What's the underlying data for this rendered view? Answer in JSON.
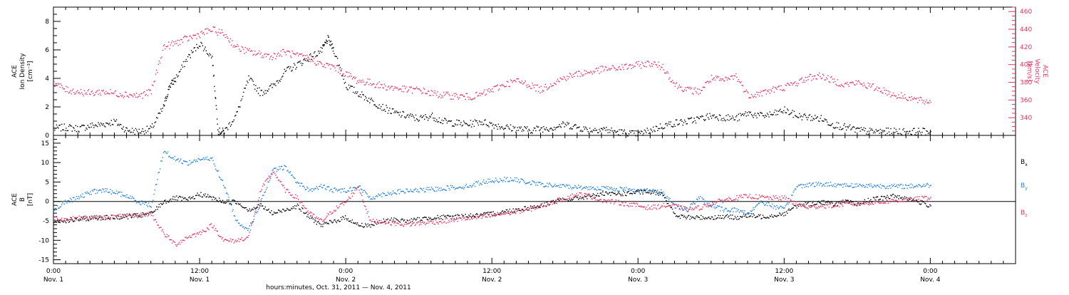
{
  "colors": {
    "density": "#000000",
    "velocity": "#e8305f",
    "bx": "#000000",
    "by": "#1f7fe0",
    "bz": "#e8305f"
  },
  "top_panel": {
    "left_axis_lines": [
      "ACE",
      "Ion Density",
      "[cm⁻³]"
    ],
    "right_axis_lines": [
      "ACE",
      "Velocity",
      "[km/s]"
    ]
  },
  "bottom_panel": {
    "left_axis_lines": [
      "ACE",
      "B",
      "[nT]"
    ],
    "legend": [
      {
        "label": "B",
        "sub": "x"
      },
      {
        "label": "B",
        "sub": "y"
      },
      {
        "label": "B",
        "sub": "z"
      }
    ]
  },
  "x_axis": {
    "ticks": [
      {
        "hours": 0,
        "time": "0:00",
        "date": "Nov. 1"
      },
      {
        "hours": 12,
        "time": "12:00",
        "date": "Nov. 1"
      },
      {
        "hours": 24,
        "time": "0:00",
        "date": "Nov. 2"
      },
      {
        "hours": 36,
        "time": "12:00",
        "date": "Nov. 2"
      },
      {
        "hours": 48,
        "time": "0:00",
        "date": "Nov. 3"
      },
      {
        "hours": 60,
        "time": "12:00",
        "date": "Nov. 3"
      },
      {
        "hours": 72,
        "time": "0:00",
        "date": "Nov. 4"
      }
    ],
    "caption": "hours:minutes, Oct. 31, 2011 — Nov.  4, 2011"
  },
  "chart_data": [
    {
      "type": "scatter",
      "panel": "top",
      "ylabel": "ACE Ion Density [cm⁻³]",
      "y2label": "ACE Velocity [km/s]",
      "x_unit": "hours after 0:00 Nov. 1",
      "xlim": [
        0,
        79
      ],
      "ylim": [
        0,
        9
      ],
      "y_ticks": [
        0,
        2,
        4,
        6,
        8
      ],
      "y2lim": [
        320,
        465
      ],
      "y2_ticks": [
        340,
        360,
        380,
        400,
        420,
        440,
        460
      ],
      "series": [
        {
          "color": "#000000",
          "axis": "left",
          "x": [
            0,
            1,
            2,
            3,
            4,
            5,
            6,
            7,
            8,
            9,
            9.5,
            10,
            11,
            12,
            13,
            13.5,
            14,
            15,
            16,
            17,
            18,
            19,
            20,
            21,
            22,
            22.5,
            23,
            24,
            25,
            26,
            27,
            28,
            29,
            30,
            31,
            32,
            33,
            34,
            35,
            36,
            37,
            38,
            39,
            40,
            41,
            42,
            43,
            44,
            45,
            46,
            47,
            48,
            49,
            50,
            51,
            52,
            53,
            54,
            55,
            56,
            57,
            58,
            59,
            60,
            61,
            62,
            63,
            64,
            65,
            66,
            67,
            68,
            69,
            70,
            71,
            72
          ],
          "y": [
            0.5,
            0.6,
            0.5,
            0.7,
            0.8,
            1.0,
            0.4,
            0.3,
            0.5,
            2.0,
            3.5,
            4.0,
            5.5,
            6.5,
            5.5,
            0.3,
            0.3,
            1.5,
            4.0,
            3.0,
            3.5,
            4.5,
            5.0,
            5.5,
            6.0,
            6.8,
            6.0,
            3.5,
            3.0,
            2.5,
            2.0,
            1.6,
            1.4,
            1.2,
            1.4,
            1.0,
            0.9,
            0.8,
            1.0,
            0.8,
            0.6,
            0.5,
            0.4,
            0.5,
            0.6,
            0.8,
            0.6,
            0.4,
            0.5,
            0.3,
            0.2,
            0.1,
            0.4,
            0.7,
            0.9,
            1.0,
            1.2,
            1.4,
            1.3,
            1.2,
            1.6,
            1.4,
            1.5,
            1.8,
            1.4,
            1.3,
            1.2,
            0.8,
            0.6,
            0.4,
            0.3,
            0.3,
            0.3,
            0.3,
            0.3,
            0.3
          ]
        },
        {
          "color": "#e8305f",
          "axis": "right",
          "x": [
            0,
            1,
            2,
            3,
            4,
            5,
            6,
            7,
            8,
            9,
            10,
            11,
            12,
            13,
            14,
            15,
            16,
            17,
            18,
            19,
            20,
            21,
            22,
            23,
            24,
            25,
            26,
            27,
            28,
            29,
            30,
            31,
            32,
            33,
            34,
            35,
            36,
            37,
            38,
            39,
            40,
            41,
            42,
            43,
            44,
            45,
            46,
            47,
            48,
            49,
            50,
            51,
            52,
            53,
            54,
            55,
            56,
            57,
            58,
            59,
            60,
            61,
            62,
            63,
            64,
            65,
            66,
            67,
            68,
            69,
            70,
            71,
            72
          ],
          "y": [
            380,
            372,
            370,
            368,
            370,
            368,
            367,
            365,
            370,
            420,
            425,
            430,
            435,
            440,
            435,
            420,
            415,
            412,
            410,
            415,
            410,
            408,
            400,
            398,
            390,
            382,
            380,
            376,
            374,
            372,
            372,
            368,
            366,
            365,
            364,
            366,
            372,
            378,
            382,
            378,
            372,
            380,
            386,
            390,
            392,
            395,
            396,
            398,
            400,
            402,
            398,
            378,
            372,
            370,
            385,
            382,
            388,
            366,
            368,
            372,
            375,
            380,
            386,
            388,
            382,
            378,
            380,
            376,
            372,
            366,
            364,
            360,
            358
          ]
        }
      ]
    },
    {
      "type": "scatter",
      "panel": "bottom",
      "ylabel": "ACE B [nT]",
      "x_unit": "hours after 0:00 Nov. 1",
      "xlim": [
        0,
        79
      ],
      "ylim": [
        -16,
        17
      ],
      "y_ticks": [
        -15,
        -10,
        -5,
        0,
        5,
        10,
        15
      ],
      "series": [
        {
          "name": "Bx",
          "color": "#000000",
          "x": [
            0,
            1,
            2,
            3,
            4,
            5,
            6,
            7,
            8,
            9,
            10,
            11,
            12,
            13,
            14,
            15,
            16,
            17,
            18,
            19,
            20,
            21,
            22,
            23,
            24,
            25,
            26,
            27,
            28,
            29,
            30,
            31,
            32,
            33,
            34,
            35,
            36,
            37,
            38,
            39,
            40,
            41,
            42,
            43,
            44,
            45,
            46,
            47,
            48,
            49,
            50,
            51,
            52,
            53,
            54,
            55,
            56,
            57,
            58,
            59,
            60,
            61,
            62,
            63,
            64,
            65,
            66,
            67,
            68,
            69,
            70,
            71,
            72
          ],
          "y": [
            -5,
            -4.8,
            -4.5,
            -4.2,
            -4,
            -4,
            -3.8,
            -3.5,
            -3,
            0,
            1,
            0.5,
            2,
            1,
            0,
            0,
            -2,
            -1,
            -3,
            -2,
            -1,
            -4,
            -6,
            -5,
            -4,
            -6,
            -6,
            -5,
            -4.5,
            -5,
            -4.5,
            -4,
            -4,
            -3.8,
            -3.5,
            -3.5,
            -3,
            -2.5,
            -2,
            -1.5,
            -1,
            0,
            0.5,
            1,
            1.5,
            2,
            2,
            2.2,
            2.5,
            2.5,
            2.2,
            -3.5,
            -4,
            -4,
            -4,
            -3.8,
            -4,
            -3.5,
            -3.8,
            -3.5,
            -3,
            -1,
            -0.5,
            0,
            -0.5,
            0,
            -0.5,
            0.5,
            1,
            1.5,
            1,
            0,
            -1
          ]
        },
        {
          "name": "By",
          "color": "#1f7fe0",
          "x": [
            0,
            1,
            2,
            3,
            4,
            5,
            6,
            7,
            8,
            9,
            10,
            11,
            12,
            13,
            14,
            15,
            16,
            17,
            18,
            19,
            20,
            21,
            22,
            23,
            24,
            25,
            26,
            27,
            28,
            29,
            30,
            31,
            32,
            33,
            34,
            35,
            36,
            37,
            38,
            39,
            40,
            41,
            42,
            43,
            44,
            45,
            46,
            47,
            48,
            49,
            50,
            51,
            52,
            53,
            54,
            55,
            56,
            57,
            58,
            59,
            60,
            61,
            62,
            63,
            64,
            65,
            66,
            67,
            68,
            69,
            70,
            71,
            72
          ],
          "y": [
            -2,
            0,
            1,
            2.5,
            3,
            2.5,
            1.5,
            0,
            -1,
            13,
            11,
            10,
            11,
            11,
            4,
            -5,
            -7,
            0,
            8,
            9,
            5,
            3,
            4,
            3,
            3,
            4,
            1,
            2,
            2.5,
            2.8,
            3,
            3.2,
            3.5,
            3.8,
            4,
            5,
            5.5,
            5.8,
            5.6,
            5,
            4.5,
            4.2,
            4,
            3.8,
            3.6,
            3.5,
            3.4,
            3.2,
            3.0,
            2.8,
            2.5,
            -1,
            -2,
            1,
            -1,
            -2,
            -2,
            -3,
            0,
            -1,
            -2,
            4,
            4.5,
            4.5,
            4.5,
            4.3,
            4.2,
            4.2,
            4.1,
            4.0,
            4.0,
            4.2,
            4.3
          ]
        },
        {
          "name": "Bz",
          "color": "#e8305f",
          "x": [
            0,
            1,
            2,
            3,
            4,
            5,
            6,
            7,
            8,
            9,
            10,
            11,
            12,
            13,
            14,
            15,
            16,
            17,
            18,
            19,
            20,
            21,
            22,
            23,
            24,
            25,
            26,
            27,
            28,
            29,
            30,
            31,
            32,
            33,
            34,
            35,
            36,
            37,
            38,
            39,
            40,
            41,
            42,
            43,
            44,
            45,
            46,
            47,
            48,
            49,
            50,
            51,
            52,
            53,
            54,
            55,
            56,
            57,
            58,
            59,
            60,
            61,
            62,
            63,
            64,
            65,
            66,
            67,
            68,
            69,
            70,
            71,
            72
          ],
          "y": [
            -4,
            -4.5,
            -4.2,
            -4,
            -4,
            -3.8,
            -3.6,
            -3.5,
            -3,
            -8,
            -11,
            -9,
            -8,
            -6,
            -10,
            -10,
            -9,
            3,
            8,
            3,
            1,
            -3,
            -5,
            -2,
            0,
            4,
            -5,
            -5,
            -5.5,
            -5.8,
            -5.5,
            -5.2,
            -5,
            -4.5,
            -4.2,
            -4,
            -3.5,
            -3,
            -2.5,
            -2,
            -1,
            0,
            1,
            2,
            1.5,
            0.5,
            0,
            -0.5,
            -1,
            -1.5,
            -1,
            -1,
            -2,
            -1.5,
            -0.5,
            0.5,
            1,
            1.5,
            1.2,
            1,
            1,
            -0.5,
            -1.5,
            -1,
            -1,
            -0.5,
            -0.5,
            -0.2,
            0,
            0.3,
            0.5,
            0.8,
            1.2
          ]
        }
      ]
    }
  ]
}
